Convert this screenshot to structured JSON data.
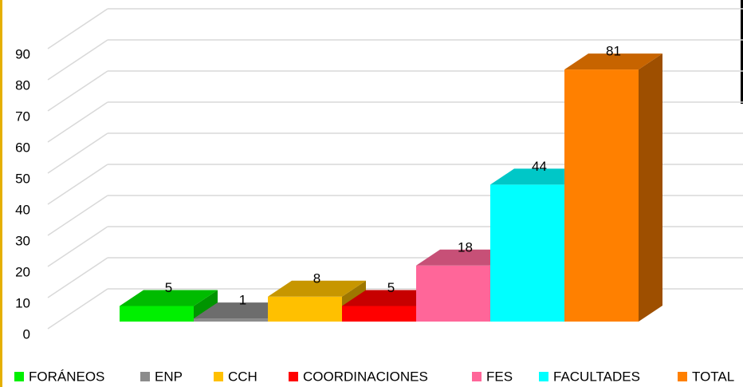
{
  "chart_data": {
    "type": "bar3d",
    "categories": [
      "FORÁNEOS",
      "ENP",
      "CCH",
      "COORDINACIONES",
      "FES",
      "FACULTADES",
      "TOTAL"
    ],
    "values": [
      5,
      1,
      8,
      5,
      18,
      44,
      81
    ],
    "colors": [
      "#00f000",
      "#8c8c8c",
      "#ffc000",
      "#ff0000",
      "#ff6699",
      "#00ffff",
      "#ff8000"
    ],
    "ylim": [
      0,
      90
    ],
    "yticks": [
      0,
      10,
      20,
      30,
      40,
      50,
      60,
      70,
      80,
      90
    ],
    "grid": true,
    "legend": "bottom"
  }
}
